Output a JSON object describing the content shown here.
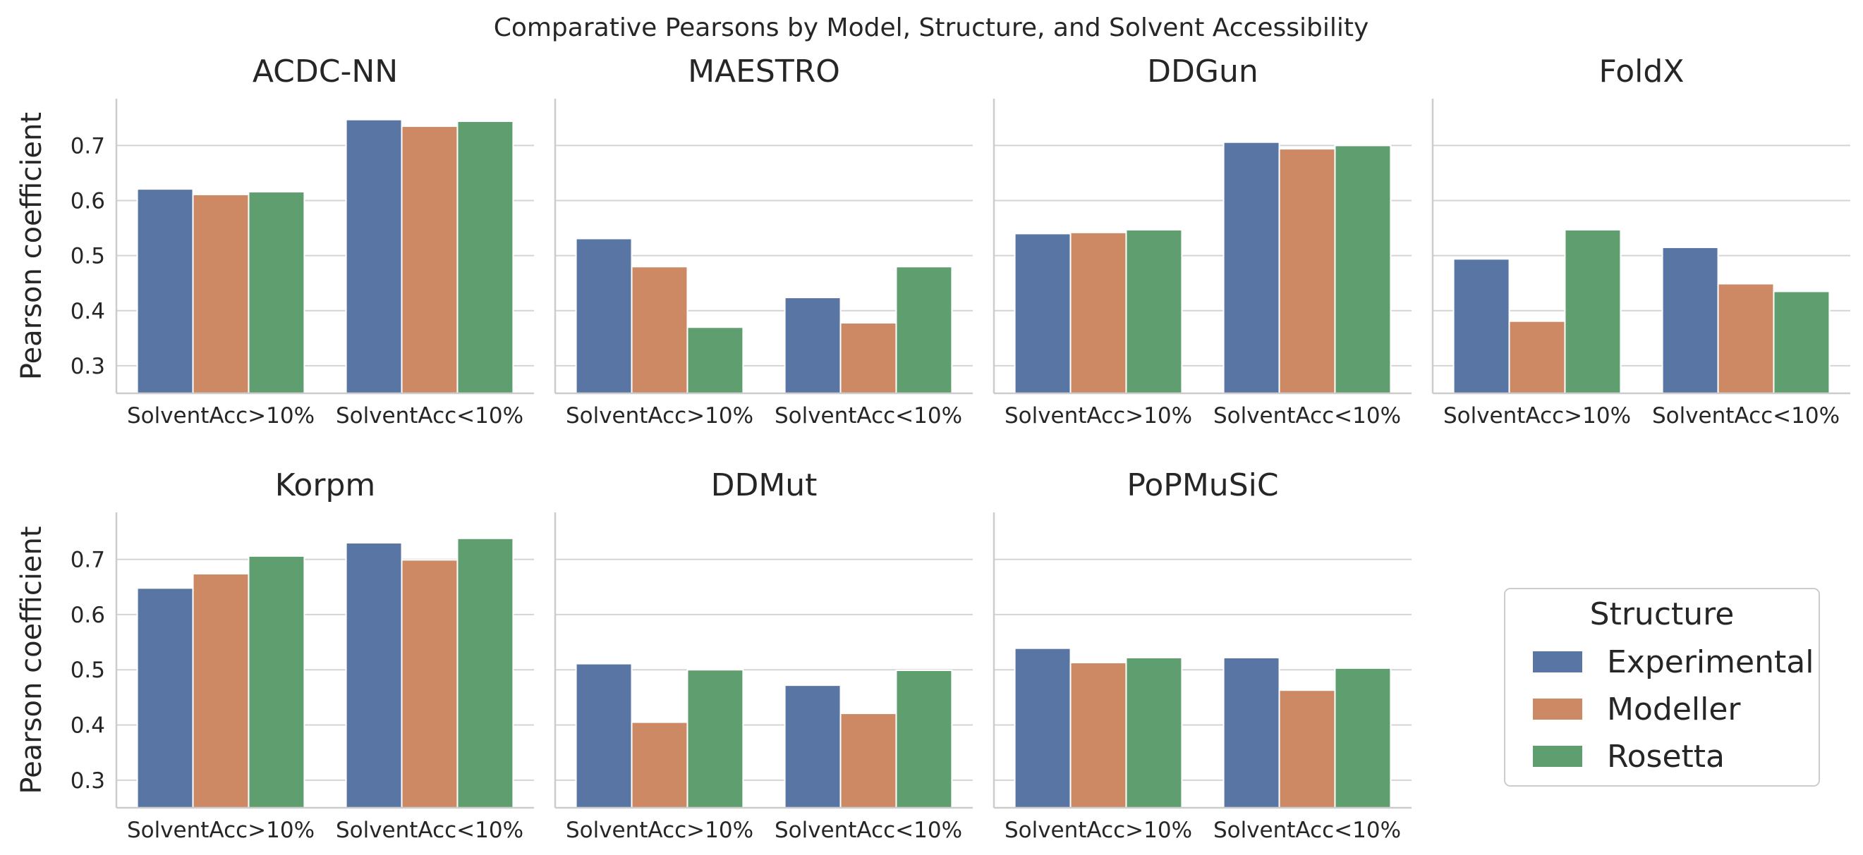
{
  "chart_data": {
    "type": "bar",
    "title": "Comparative Pearsons by Model, Structure, and Solvent Accessibility",
    "ylabel": "Pearson coefficient",
    "xlabel": "",
    "ylim": [
      0.25,
      0.785
    ],
    "yticks": [
      0.3,
      0.4,
      0.5,
      0.6,
      0.7
    ],
    "ytick_labels": [
      "0.3",
      "0.4",
      "0.5",
      "0.6",
      "0.7"
    ],
    "categories": [
      "SolventAcc>10%",
      "SolventAcc<10%"
    ],
    "series_names": [
      "Experimental",
      "Modeller",
      "Rosetta"
    ],
    "colors": {
      "Experimental": "#5875a4",
      "Modeller": "#cc8963",
      "Rosetta": "#5f9e6e"
    },
    "legend": {
      "title": "Structure",
      "position": "lower-right"
    },
    "panels": [
      {
        "title": "ACDC-NN",
        "series": [
          {
            "name": "Experimental",
            "values": [
              0.621,
              0.747
            ]
          },
          {
            "name": "Modeller",
            "values": [
              0.611,
              0.735
            ]
          },
          {
            "name": "Rosetta",
            "values": [
              0.616,
              0.744
            ]
          }
        ]
      },
      {
        "title": "MAESTRO",
        "series": [
          {
            "name": "Experimental",
            "values": [
              0.531,
              0.424
            ]
          },
          {
            "name": "Modeller",
            "values": [
              0.48,
              0.378
            ]
          },
          {
            "name": "Rosetta",
            "values": [
              0.37,
              0.48
            ]
          }
        ]
      },
      {
        "title": "DDGun",
        "series": [
          {
            "name": "Experimental",
            "values": [
              0.54,
              0.706
            ]
          },
          {
            "name": "Modeller",
            "values": [
              0.542,
              0.694
            ]
          },
          {
            "name": "Rosetta",
            "values": [
              0.547,
              0.7
            ]
          }
        ]
      },
      {
        "title": "FoldX",
        "series": [
          {
            "name": "Experimental",
            "values": [
              0.494,
              0.515
            ]
          },
          {
            "name": "Modeller",
            "values": [
              0.381,
              0.449
            ]
          },
          {
            "name": "Rosetta",
            "values": [
              0.547,
              0.435
            ]
          }
        ]
      },
      {
        "title": "Korpm",
        "series": [
          {
            "name": "Experimental",
            "values": [
              0.648,
              0.73
            ]
          },
          {
            "name": "Modeller",
            "values": [
              0.674,
              0.699
            ]
          },
          {
            "name": "Rosetta",
            "values": [
              0.706,
              0.738
            ]
          }
        ]
      },
      {
        "title": "DDMut",
        "series": [
          {
            "name": "Experimental",
            "values": [
              0.511,
              0.472
            ]
          },
          {
            "name": "Modeller",
            "values": [
              0.405,
              0.421
            ]
          },
          {
            "name": "Rosetta",
            "values": [
              0.5,
              0.499
            ]
          }
        ]
      },
      {
        "title": "PoPMuSiC",
        "series": [
          {
            "name": "Experimental",
            "values": [
              0.539,
              0.522
            ]
          },
          {
            "name": "Modeller",
            "values": [
              0.513,
              0.463
            ]
          },
          {
            "name": "Rosetta",
            "values": [
              0.522,
              0.503
            ]
          }
        ]
      }
    ]
  }
}
